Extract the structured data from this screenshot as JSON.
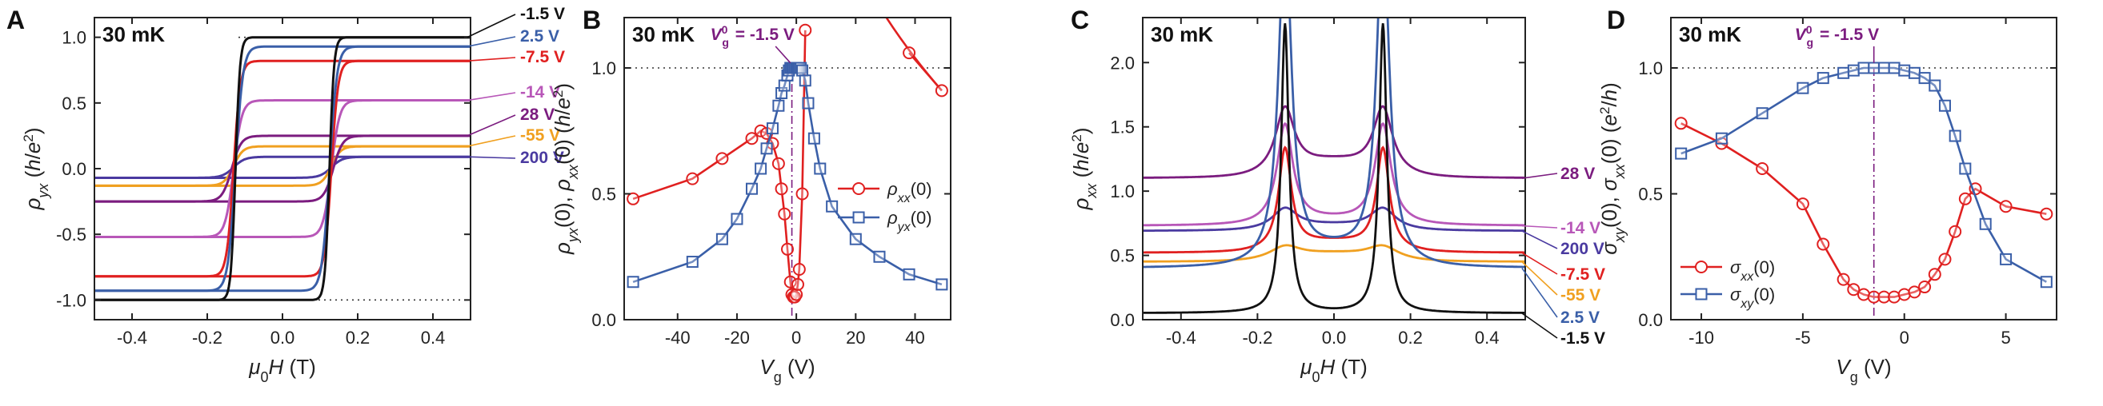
{
  "colors": {
    "black": "#111111",
    "red": "#e02020",
    "blue": "#3a5fa8",
    "orange": "#f0a020",
    "purple": "#7b1c7f",
    "magenta": "#b857b8",
    "violet": "#4a3aa0",
    "dotted": "#333333"
  },
  "chart_data": [
    {
      "panel": "A",
      "type": "line",
      "condition": "30 mK",
      "xlabel": "μ0H (T)",
      "ylabel": "ρyx (h/e²)",
      "xlim": [
        -0.5,
        0.5
      ],
      "ylim": [
        -1.15,
        1.15
      ],
      "xticks": [
        "-0.4",
        "-0.2",
        "0.0",
        "0.2",
        "0.4"
      ],
      "yticks": [
        "-1.0",
        "-0.5",
        "0.0",
        "0.5",
        "1.0"
      ],
      "reference_lines": [
        1.0,
        -1.0
      ],
      "series": [
        {
          "name": "-1.5 V",
          "color": "black",
          "upper": 1.0,
          "lower": -1.0,
          "coercive": 0.125,
          "width": 0.012
        },
        {
          "name": "2.5 V",
          "color": "blue",
          "upper": 0.93,
          "lower": -0.93,
          "coercive": 0.125,
          "width": 0.02
        },
        {
          "name": "-7.5 V",
          "color": "red",
          "upper": 0.82,
          "lower": -0.82,
          "coercive": 0.13,
          "width": 0.018
        },
        {
          "name": "-14 V",
          "color": "magenta",
          "upper": 0.52,
          "lower": -0.52,
          "coercive": 0.13,
          "width": 0.022
        },
        {
          "name": "28 V",
          "color": "purple",
          "upper": 0.25,
          "lower": -0.25,
          "coercive": 0.135,
          "width": 0.025
        },
        {
          "name": "-55 V",
          "color": "orange",
          "upper": 0.17,
          "lower": -0.13,
          "coercive": 0.13,
          "width": 0.025
        },
        {
          "name": "200 V",
          "color": "violet",
          "upper": 0.09,
          "lower": -0.07,
          "coercive": 0.13,
          "width": 0.03
        }
      ]
    },
    {
      "panel": "B",
      "type": "scatter",
      "condition": "30 mK",
      "xlabel": "Vg (V)",
      "ylabel": "ρyx(0), ρxx(0) (h/e²)",
      "xlim": [
        -58,
        52
      ],
      "ylim": [
        0,
        1.2
      ],
      "xticks": [
        "-40",
        "-20",
        "0",
        "20",
        "40"
      ],
      "yticks": [
        "0.0",
        "0.5",
        "1.0"
      ],
      "annotation": "V0g = -1.5 V",
      "annotation_x": -1.5,
      "reference_line": 1.0,
      "legend": [
        "ρxx(0)",
        "ρyx(0)"
      ],
      "series": [
        {
          "name": "ρxx(0)",
          "color": "red",
          "marker": "circle",
          "x": [
            -55,
            -35,
            -25,
            -15,
            -12,
            -10,
            -8,
            -6,
            -5,
            -4,
            -3,
            -2,
            -1.5,
            -1,
            -0.5,
            0,
            0.5,
            1,
            2,
            3
          ],
          "y": [
            0.48,
            0.56,
            0.64,
            0.72,
            0.75,
            0.74,
            0.7,
            0.62,
            0.52,
            0.42,
            0.28,
            0.15,
            0.1,
            0.09,
            0.09,
            0.1,
            0.14,
            0.2,
            0.5,
            1.15
          ]
        },
        {
          "name": "ρyx(0)",
          "color": "blue",
          "marker": "square",
          "x": [
            -55,
            -35,
            -25,
            -20,
            -15,
            -12,
            -10,
            -8,
            -6,
            -5,
            -4,
            -3,
            -2.5,
            -2,
            -1.5,
            -1,
            -0.5,
            0,
            0.5,
            1,
            1.5,
            2,
            3,
            4,
            6,
            8,
            12,
            20,
            28,
            38,
            49
          ],
          "y": [
            0.15,
            0.23,
            0.32,
            0.4,
            0.52,
            0.6,
            0.68,
            0.76,
            0.85,
            0.9,
            0.93,
            0.97,
            0.99,
            1.0,
            1.0,
            1.0,
            1.0,
            1.0,
            1.0,
            1.0,
            1.0,
            0.99,
            0.95,
            0.86,
            0.72,
            0.6,
            0.45,
            0.32,
            0.25,
            0.18,
            0.14
          ]
        },
        {
          "name": "ρxx(0) high Vg",
          "color": "red",
          "marker": "circle",
          "x": [
            38,
            49
          ],
          "y": [
            1.06,
            0.91
          ]
        }
      ]
    },
    {
      "panel": "C",
      "type": "line",
      "condition": "30 mK",
      "xlabel": "μ0H (T)",
      "ylabel": "ρxx (h/e²)",
      "xlim": [
        -0.5,
        0.5
      ],
      "ylim": [
        0,
        2.35
      ],
      "xticks": [
        "-0.4",
        "-0.2",
        "0.0",
        "0.2",
        "0.4"
      ],
      "yticks": [
        "0.0",
        "0.5",
        "1.0",
        "1.5",
        "2.0"
      ],
      "series": [
        {
          "name": "28 V",
          "color": "purple",
          "base": 1.1,
          "center": 1.25,
          "peak": 1.6,
          "width": 0.03
        },
        {
          "name": "-14 V",
          "color": "magenta",
          "base": 0.73,
          "center": 0.78,
          "peak": 1.5,
          "width": 0.025
        },
        {
          "name": "200 V",
          "color": "violet",
          "base": 0.69,
          "center": 0.74,
          "peak": 0.85,
          "width": 0.04
        },
        {
          "name": "-7.5 V",
          "color": "red",
          "base": 0.52,
          "center": 0.62,
          "peak": 1.3,
          "width": 0.02
        },
        {
          "name": "-55 V",
          "color": "orange",
          "base": 0.45,
          "center": 0.52,
          "peak": 0.55,
          "width": 0.05
        },
        {
          "name": "2.5 V",
          "color": "blue",
          "base": 0.4,
          "center": 0.55,
          "peak": 3.0,
          "width": 0.02
        },
        {
          "name": "-1.5 V",
          "color": "black",
          "base": 0.05,
          "center": 0.05,
          "peak": 2.3,
          "width": 0.012
        }
      ]
    },
    {
      "panel": "D",
      "type": "scatter",
      "condition": "30 mK",
      "xlabel": "Vg (V)",
      "ylabel": "σxy(0), σxx(0) (e²/h)",
      "xlim": [
        -11.5,
        7.5
      ],
      "ylim": [
        0,
        1.2
      ],
      "xticks": [
        "-10",
        "-5",
        "0",
        "5"
      ],
      "yticks": [
        "0.0",
        "0.5",
        "1.0"
      ],
      "annotation": "V0g = -1.5 V",
      "annotation_x": -1.5,
      "reference_line": 1.0,
      "legend": [
        "σxx(0)",
        "σxy(0)"
      ],
      "series": [
        {
          "name": "σxx(0)",
          "color": "red",
          "marker": "circle",
          "x": [
            -11,
            -9,
            -7,
            -5,
            -4,
            -3,
            -2.5,
            -2,
            -1.5,
            -1,
            -0.5,
            0,
            0.5,
            1,
            1.5,
            2,
            2.5,
            3,
            3.5,
            5,
            7
          ],
          "y": [
            0.78,
            0.7,
            0.6,
            0.46,
            0.3,
            0.16,
            0.12,
            0.1,
            0.09,
            0.09,
            0.09,
            0.1,
            0.11,
            0.13,
            0.18,
            0.24,
            0.35,
            0.48,
            0.52,
            0.45,
            0.42
          ]
        },
        {
          "name": "σxy(0)",
          "color": "blue",
          "marker": "square",
          "x": [
            -11,
            -9,
            -7,
            -5,
            -4,
            -3,
            -2.5,
            -2,
            -1.5,
            -1,
            -0.5,
            0,
            0.5,
            1,
            1.5,
            2,
            2.5,
            3,
            4,
            5,
            7
          ],
          "y": [
            0.66,
            0.72,
            0.82,
            0.92,
            0.96,
            0.98,
            0.99,
            1.0,
            1.0,
            1.0,
            1.0,
            0.99,
            0.98,
            0.96,
            0.93,
            0.85,
            0.73,
            0.6,
            0.38,
            0.24,
            0.15
          ]
        }
      ]
    }
  ]
}
